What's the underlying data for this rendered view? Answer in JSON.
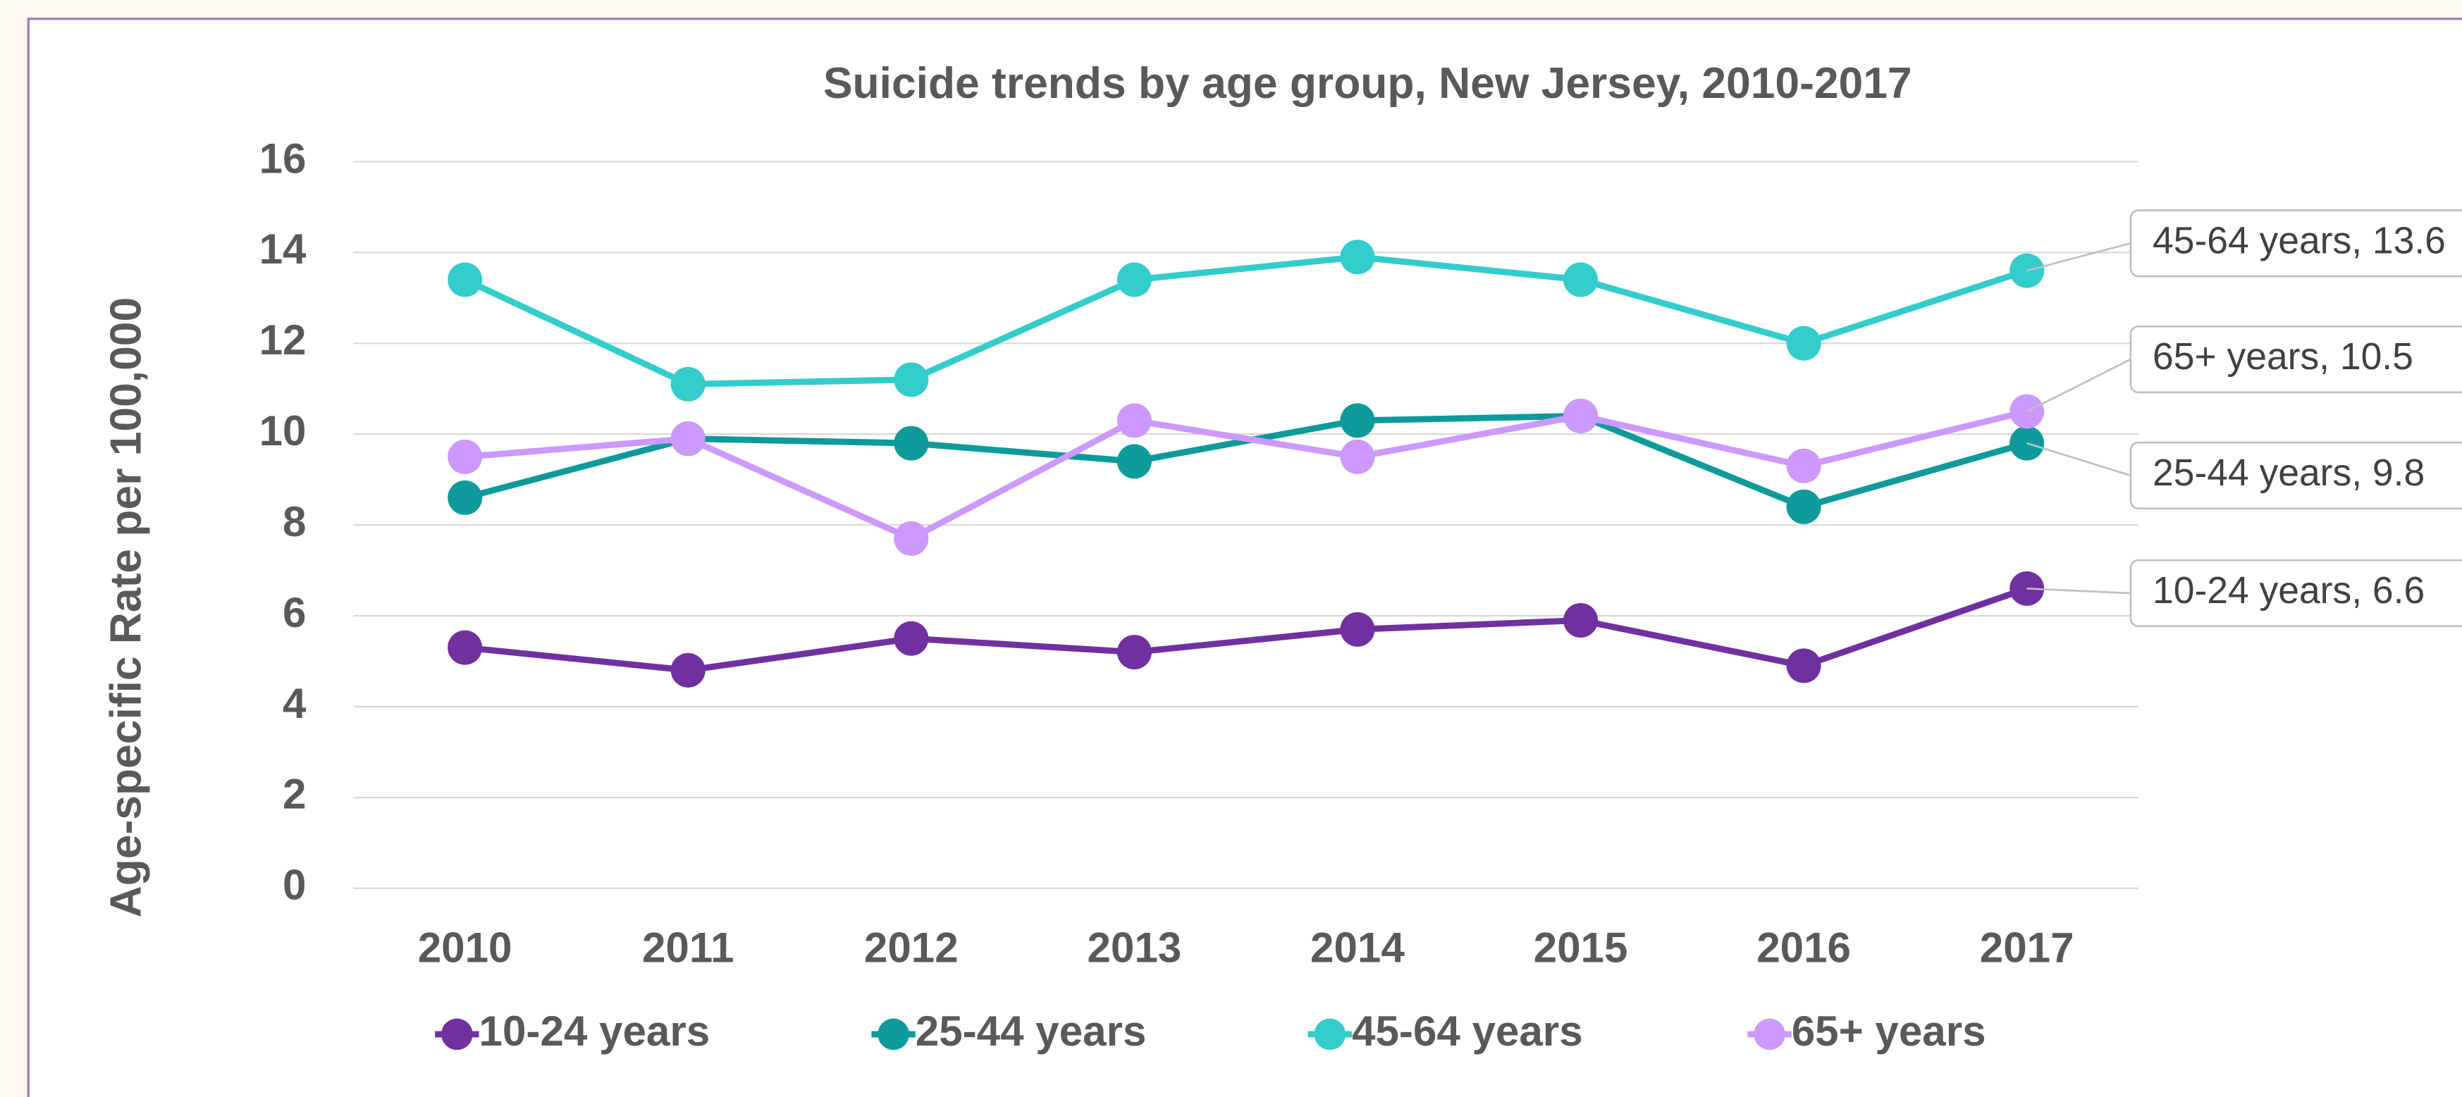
{
  "chart_data": {
    "type": "line",
    "title": "Suicide trends by age group, New Jersey, 2010-2017",
    "y_label": "Age-specific Rate per 100,000",
    "categories": [
      "2010",
      "2011",
      "2012",
      "2013",
      "2014",
      "2015",
      "2016",
      "2017"
    ],
    "series": [
      {
        "name": "10-24 years",
        "color": "#7030a0",
        "values": [
          5.3,
          4.8,
          5.5,
          5.2,
          5.7,
          5.9,
          4.9,
          6.6
        ],
        "end_label": "10-24 years, 6.6"
      },
      {
        "name": "25-44 years",
        "color": "#0e9a9a",
        "values": [
          8.6,
          9.9,
          9.8,
          9.4,
          10.3,
          10.4,
          8.4,
          9.8
        ],
        "end_label": "25-44 years, 9.8"
      },
      {
        "name": "45-64 years",
        "color": "#33cccc",
        "values": [
          13.4,
          11.1,
          11.2,
          13.4,
          13.9,
          13.4,
          12.0,
          13.6
        ],
        "end_label": "45-64 years, 13.6"
      },
      {
        "name": "65+ years",
        "color": "#cc99ff",
        "values": [
          9.5,
          9.9,
          7.7,
          10.3,
          9.5,
          10.4,
          9.3,
          10.5
        ],
        "end_label": "65+ years, 10.5"
      }
    ],
    "ylim": [
      0,
      16
    ],
    "yticks": [
      0,
      2,
      4,
      6,
      8,
      10,
      12,
      14,
      16
    ],
    "grid": true,
    "legend": "bottom"
  }
}
